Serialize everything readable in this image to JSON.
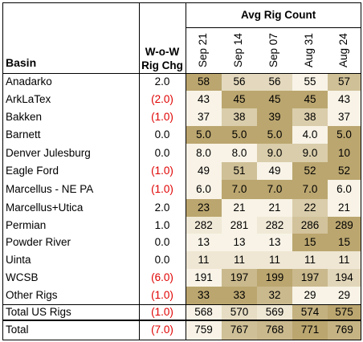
{
  "chart_data": {
    "type": "table",
    "title": "Avg Rig Count",
    "columns": {
      "basin_header": "Basin",
      "change_header": "W-o-W\nRig Chg",
      "weeks": [
        "Sep 21",
        "Sep 14",
        "Sep 07",
        "Aug 31",
        "Aug 24"
      ]
    },
    "rows": [
      {
        "basin": "Anadarko",
        "chg": "2.0",
        "values": [
          "58",
          "56",
          "56",
          "55",
          "57"
        ]
      },
      {
        "basin": "ArkLaTex",
        "chg": "(2.0)",
        "values": [
          "43",
          "45",
          "45",
          "45",
          "43"
        ]
      },
      {
        "basin": "Bakken",
        "chg": "(1.0)",
        "values": [
          "37",
          "38",
          "39",
          "38",
          "37"
        ]
      },
      {
        "basin": "Barnett",
        "chg": "0.0",
        "values": [
          "5.0",
          "5.0",
          "5.0",
          "4.0",
          "5.0"
        ]
      },
      {
        "basin": "Denver Julesburg",
        "chg": "0.0",
        "values": [
          "8.0",
          "8.0",
          "9.0",
          "9.0",
          "10"
        ]
      },
      {
        "basin": "Eagle Ford",
        "chg": "(1.0)",
        "values": [
          "49",
          "51",
          "49",
          "52",
          "52"
        ]
      },
      {
        "basin": "Marcellus - NE PA",
        "chg": "(1.0)",
        "values": [
          "6.0",
          "7.0",
          "7.0",
          "7.0",
          "6.0"
        ]
      },
      {
        "basin": "Marcellus+Utica",
        "chg": "2.0",
        "values": [
          "23",
          "21",
          "21",
          "22",
          "21"
        ]
      },
      {
        "basin": "Permian",
        "chg": "1.0",
        "values": [
          "282",
          "281",
          "282",
          "286",
          "289"
        ]
      },
      {
        "basin": "Powder River",
        "chg": "0.0",
        "values": [
          "13",
          "13",
          "13",
          "15",
          "15"
        ]
      },
      {
        "basin": "Uinta",
        "chg": "0.0",
        "values": [
          "11",
          "11",
          "11",
          "11",
          "11"
        ]
      },
      {
        "basin": "WCSB",
        "chg": "(6.0)",
        "values": [
          "191",
          "197",
          "199",
          "197",
          "194"
        ]
      },
      {
        "basin": "Other Rigs",
        "chg": "(1.0)",
        "values": [
          "33",
          "33",
          "32",
          "29",
          "29"
        ]
      }
    ],
    "totals": [
      {
        "basin": "Total US Rigs",
        "chg": "(1.0)",
        "values": [
          "568",
          "570",
          "569",
          "574",
          "575"
        ]
      },
      {
        "basin": "Total",
        "chg": "(7.0)",
        "values": [
          "759",
          "767",
          "768",
          "771",
          "769"
        ]
      }
    ],
    "colors": {
      "heat_low": "#f8f3e6",
      "heat_high": "#bba66f",
      "negative": "#e00000",
      "line": "#000000"
    }
  }
}
